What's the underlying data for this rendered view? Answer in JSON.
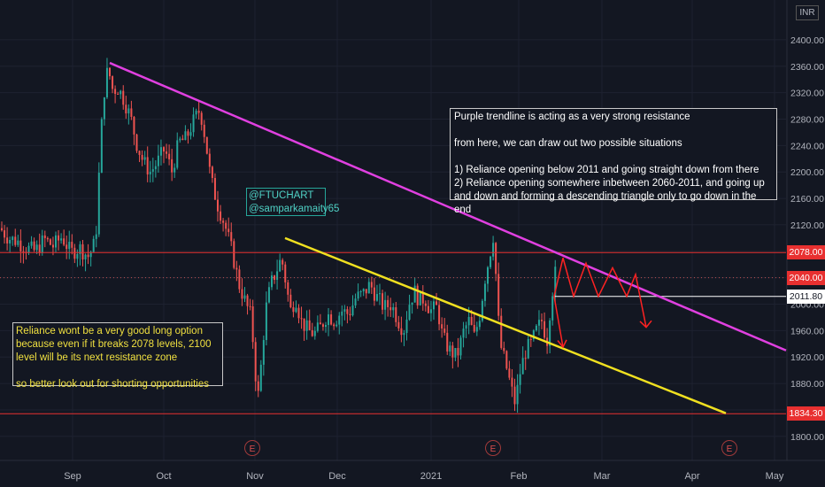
{
  "chart_data": {
    "type": "candlestick",
    "currency": "INR",
    "ylim": [
      1785,
      2420
    ],
    "y_ticks": [
      2400,
      2360,
      2320,
      2280,
      2240,
      2200,
      2160,
      2120,
      2080,
      2040,
      2000,
      1960,
      1920,
      1880,
      1840,
      1800
    ],
    "y_tick_labels": [
      "2400.00",
      "2360.00",
      "2320.00",
      "2280.00",
      "2240.00",
      "2200.00",
      "2160.00",
      "2120.00",
      "2080.00",
      "2040.00",
      "2000.00",
      "1960.00",
      "1920.00",
      "1880.00",
      "1840.00",
      "1800.00"
    ],
    "x_tick_labels": [
      "Sep",
      "Oct",
      "Nov",
      "Dec",
      "2021",
      "Feb",
      "Mar",
      "Apr",
      "May"
    ],
    "price_path": [
      [
        0,
        2115
      ],
      [
        10,
        2100
      ],
      [
        20,
        2095
      ],
      [
        30,
        2085
      ],
      [
        40,
        2080
      ],
      [
        50,
        2098
      ],
      [
        60,
        2088
      ],
      [
        70,
        2102
      ],
      [
        80,
        2078
      ],
      [
        90,
        2085
      ],
      [
        100,
        2072
      ],
      [
        108,
        2095
      ],
      [
        112,
        2200
      ],
      [
        116,
        2300
      ],
      [
        120,
        2350
      ],
      [
        124,
        2345
      ],
      [
        128,
        2320
      ],
      [
        132,
        2330
      ],
      [
        140,
        2310
      ],
      [
        148,
        2280
      ],
      [
        155,
        2240
      ],
      [
        162,
        2215
      ],
      [
        170,
        2200
      ],
      [
        178,
        2215
      ],
      [
        186,
        2235
      ],
      [
        194,
        2200
      ],
      [
        202,
        2245
      ],
      [
        210,
        2250
      ],
      [
        218,
        2275
      ],
      [
        226,
        2295
      ],
      [
        232,
        2250
      ],
      [
        238,
        2190
      ],
      [
        246,
        2150
      ],
      [
        254,
        2120
      ],
      [
        262,
        2080
      ],
      [
        270,
        2030
      ],
      [
        278,
        2000
      ],
      [
        284,
        1980
      ],
      [
        288,
        1900
      ],
      [
        292,
        1860
      ],
      [
        296,
        1925
      ],
      [
        300,
        1990
      ],
      [
        306,
        2030
      ],
      [
        312,
        2050
      ],
      [
        318,
        2070
      ],
      [
        322,
        2040
      ],
      [
        328,
        1990
      ],
      [
        334,
        2010
      ],
      [
        340,
        1975
      ],
      [
        348,
        1960
      ],
      [
        355,
        1955
      ],
      [
        362,
        1965
      ],
      [
        370,
        1985
      ],
      [
        378,
        1975
      ],
      [
        386,
        1990
      ],
      [
        394,
        1985
      ],
      [
        402,
        2010
      ],
      [
        410,
        2015
      ],
      [
        418,
        2030
      ],
      [
        426,
        2010
      ],
      [
        434,
        1995
      ],
      [
        442,
        2000
      ],
      [
        450,
        1975
      ],
      [
        456,
        1960
      ],
      [
        462,
        2000
      ],
      [
        468,
        2020
      ],
      [
        474,
        2005
      ],
      [
        480,
        2010
      ],
      [
        486,
        1990
      ],
      [
        494,
        1995
      ],
      [
        500,
        1950
      ],
      [
        508,
        1930
      ],
      [
        516,
        1920
      ],
      [
        524,
        1960
      ],
      [
        530,
        1975
      ],
      [
        536,
        1950
      ],
      [
        542,
        1985
      ],
      [
        548,
        2040
      ],
      [
        554,
        2080
      ],
      [
        558,
        2110
      ],
      [
        562,
        1990
      ],
      [
        566,
        1935
      ],
      [
        572,
        1905
      ],
      [
        578,
        1870
      ],
      [
        582,
        1850
      ],
      [
        588,
        1900
      ],
      [
        594,
        1930
      ],
      [
        600,
        1940
      ],
      [
        606,
        1960
      ],
      [
        612,
        1975
      ],
      [
        618,
        1945
      ],
      [
        622,
        2000
      ],
      [
        626,
        2040
      ],
      [
        630,
        2060
      ]
    ],
    "support_levels": [
      {
        "price": 2078.0,
        "label": "2078.00",
        "color": "#ff3333"
      },
      {
        "price": 2040.0,
        "label": "2040.00",
        "color": "#ff3333"
      },
      {
        "price": 2011.8,
        "label": "2011.80",
        "color": "#ffffff"
      },
      {
        "price": 1834.3,
        "label": "1834.30",
        "color": "#ff3333"
      }
    ],
    "trendlines": [
      {
        "name": "Purple trendline",
        "color": "#e040e0",
        "from": [
          "Sep",
          2365
        ],
        "to": [
          "May",
          1930
        ]
      },
      {
        "name": "",
        "color": "#f0e020",
        "from": [
          "Nov",
          2100
        ],
        "to": [
          "Apr",
          1835
        ]
      }
    ],
    "event_markers": [
      "E",
      "E",
      "E"
    ]
  },
  "annotations": {
    "right_box": "Purple trendline is acting as a very strong resistance\n\nfrom here, we can draw out two possible situations\n\n1) Reliance opening below 2011 and going straight down from there\n2) Reliance opening somewhere inbetween 2060-2011, and going up and down and forming a descending triangle only to go down in the end",
    "left_box": "Reliance wont be a very good long option because even if it breaks 2078 levels, 2100 level will be its next resistance zone\n\nso better look out for shorting opportunities",
    "handle_box": "@FTUCHART\n@samparkamaity65"
  },
  "colors": {
    "background": "#131722",
    "up": "#26a69a",
    "down": "#ef5350",
    "purple_line": "#e040e0",
    "yellow_line": "#f0e020",
    "arrows": "#ff2222",
    "axis_text": "#b2b5be"
  }
}
